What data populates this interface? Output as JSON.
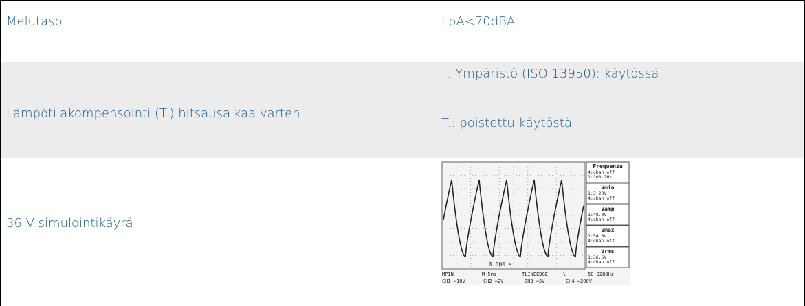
{
  "table": {
    "rows": [
      {
        "label": "Melutaso",
        "values": [
          "LpA<70dBA"
        ]
      },
      {
        "label": "Lämpötilakompensointi (T.) hitsausaikaa varten",
        "values": [
          "T. Ympäristö (ISO 13950): käytössä",
          "T.: poistettu käytöstä"
        ]
      },
      {
        "label": "36 V simulointikäyrä",
        "values": []
      }
    ]
  },
  "scope": {
    "panels": [
      {
        "title": "Frequenza",
        "lines": [
          "4:chan off",
          "1:100.2Hz"
        ]
      },
      {
        "title": "Vmin",
        "lines": [
          "1:3.20V",
          "4:chan off"
        ]
      },
      {
        "title": "Vamp",
        "lines": [
          "1:48.0V",
          "4:chan off"
        ]
      },
      {
        "title": "Vmax",
        "lines": [
          "1:54.0V",
          "4:chan off"
        ]
      },
      {
        "title": "Vrms",
        "lines": [
          "1:36.6V",
          "4:chan off"
        ]
      }
    ],
    "time": "0.000 s",
    "status": [
      "MPIN",
      "M 5ms",
      "TLINEEDGE",
      "\\",
      "50.0288Hz"
    ],
    "channels": [
      "CH1 ═10V",
      "CH2 ═2V",
      "CH3 ═5V",
      "CH4 ═200V"
    ]
  }
}
